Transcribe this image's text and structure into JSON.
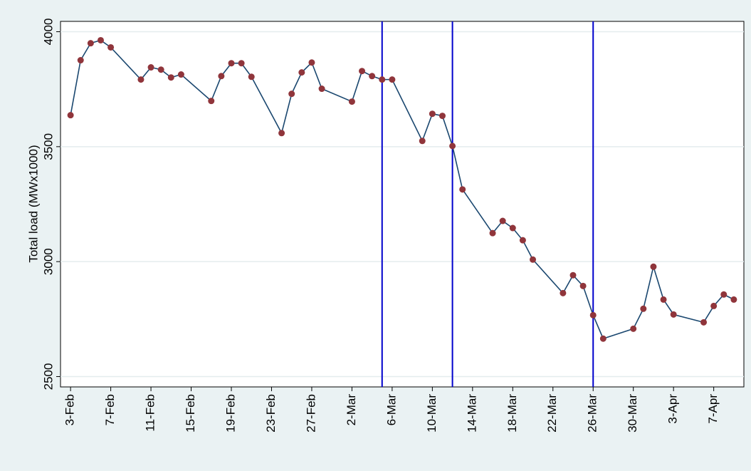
{
  "chart_data": {
    "type": "line",
    "y_label": "Total load  (MWx1000)",
    "x": [
      "3-Feb",
      "4-Feb",
      "5-Feb",
      "6-Feb",
      "7-Feb",
      "10-Feb",
      "11-Feb",
      "12-Feb",
      "13-Feb",
      "14-Feb",
      "17-Feb",
      "18-Feb",
      "19-Feb",
      "20-Feb",
      "21-Feb",
      "24-Feb",
      "25-Feb",
      "26-Feb",
      "27-Feb",
      "28-Feb",
      "2-Mar",
      "3-Mar",
      "4-Mar",
      "5-Mar",
      "6-Mar",
      "9-Mar",
      "10-Mar",
      "11-Mar",
      "12-Mar",
      "13-Mar",
      "16-Mar",
      "17-Mar",
      "18-Mar",
      "19-Mar",
      "20-Mar",
      "23-Mar",
      "24-Mar",
      "25-Mar",
      "26-Mar",
      "27-Mar",
      "30-Mar",
      "31-Mar",
      "1-Apr",
      "2-Apr",
      "3-Apr",
      "6-Apr",
      "7-Apr",
      "8-Apr",
      "9-Apr"
    ],
    "series": [
      {
        "color": "#1a476f",
        "marker_color": "#90353b",
        "values": [
          3637,
          3876,
          3950,
          3963,
          3932,
          3792,
          3845,
          3835,
          3801,
          3814,
          3699,
          3807,
          3863,
          3863,
          3804,
          3559,
          3730,
          3823,
          3866,
          3752,
          3696,
          3829,
          3807,
          3792,
          3792,
          3525,
          3643,
          3634,
          3503,
          3314,
          3124,
          3177,
          3146,
          3093,
          3009,
          2863,
          2941,
          2894,
          2767,
          2665,
          2708,
          2795,
          2978,
          2835,
          2770,
          2736,
          2807,
          2857,
          2835
        ]
      }
    ],
    "xlim": [
      "2-Feb",
      "10-Apr"
    ],
    "xticks": [
      "3-Feb",
      "7-Feb",
      "11-Feb",
      "15-Feb",
      "19-Feb",
      "23-Feb",
      "27-Feb",
      "2-Mar",
      "6-Mar",
      "10-Mar",
      "14-Mar",
      "18-Mar",
      "22-Mar",
      "26-Mar",
      "30-Mar",
      "3-Apr",
      "7-Apr"
    ],
    "ylim": [
      2455,
      4045
    ],
    "yticks": [
      2500,
      3000,
      3500,
      4000
    ],
    "grid": true,
    "vlines": [
      "5-Mar",
      "12-Mar",
      "26-Mar"
    ],
    "vline_color": "#0000cc"
  }
}
